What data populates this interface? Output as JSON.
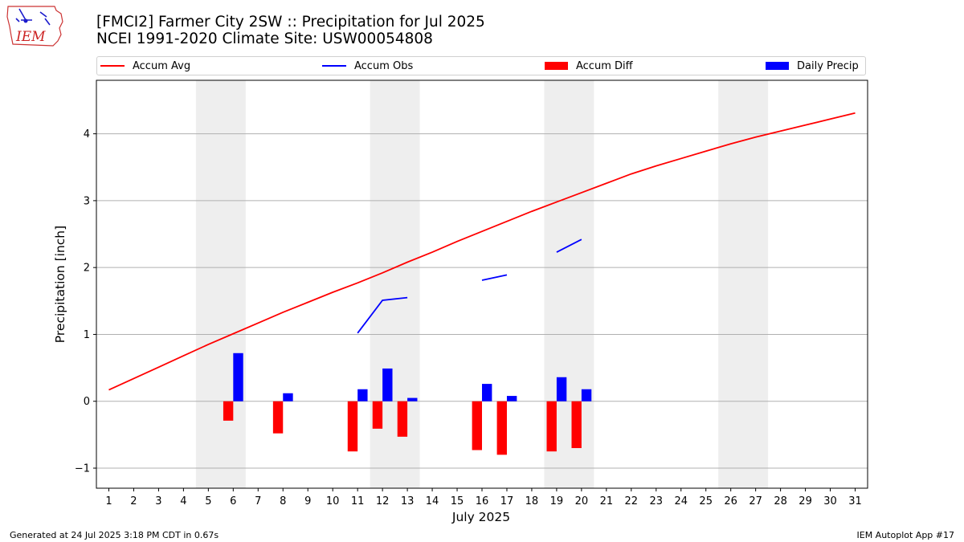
{
  "header": {
    "title_line1": "[FMCI2] Farmer City 2SW :: Precipitation for Jul 2025",
    "title_line2": "NCEI 1991-2020 Climate Site: USW00054808",
    "logo_text": "IEM"
  },
  "legend": {
    "position": "top",
    "items": [
      {
        "label": "Accum Avg",
        "kind": "line",
        "color": "#ff0000"
      },
      {
        "label": "Accum Obs",
        "kind": "line",
        "color": "#0000ff"
      },
      {
        "label": "Accum Diff",
        "kind": "bar",
        "color": "#ff0000"
      },
      {
        "label": "Daily Precip",
        "kind": "bar",
        "color": "#0000ff"
      }
    ]
  },
  "footer": {
    "left": "Generated at 24 Jul 2025 3:18 PM CDT in 0.67s",
    "right": "IEM Autoplot App #17"
  },
  "chart_data": {
    "type": "bar",
    "xlabel": "July 2025",
    "ylabel": "Precipitation [inch]",
    "xlim": [
      0.5,
      31.5
    ],
    "ylim": [
      -1.3,
      4.8
    ],
    "x_ticks": [
      1,
      2,
      3,
      4,
      5,
      6,
      7,
      8,
      9,
      10,
      11,
      12,
      13,
      14,
      15,
      16,
      17,
      18,
      19,
      20,
      21,
      22,
      23,
      24,
      25,
      26,
      27,
      28,
      29,
      30,
      31
    ],
    "y_ticks": [
      -1,
      0,
      1,
      2,
      3,
      4
    ],
    "y_tick_labels": [
      "−1",
      "0",
      "1",
      "2",
      "3",
      "4"
    ],
    "grid": "horizontal",
    "weekend_shading": [
      [
        4.5,
        6.5
      ],
      [
        11.5,
        13.5
      ],
      [
        18.5,
        20.5
      ],
      [
        25.5,
        27.5
      ]
    ],
    "shading_color": "#eeeeee",
    "series": [
      {
        "name": "Accum Avg",
        "kind": "line",
        "color": "#ff0000",
        "x": [
          1,
          2,
          3,
          4,
          5,
          6,
          7,
          8,
          9,
          10,
          11,
          12,
          13,
          14,
          15,
          16,
          17,
          18,
          19,
          20,
          21,
          22,
          23,
          24,
          25,
          26,
          27,
          28,
          29,
          30,
          31
        ],
        "values": [
          0.17,
          0.34,
          0.51,
          0.68,
          0.85,
          1.01,
          1.17,
          1.33,
          1.48,
          1.63,
          1.77,
          1.92,
          2.08,
          2.23,
          2.39,
          2.54,
          2.69,
          2.84,
          2.98,
          3.12,
          3.26,
          3.4,
          3.52,
          3.63,
          3.74,
          3.85,
          3.95,
          4.04,
          4.13,
          4.22,
          4.31
        ]
      },
      {
        "name": "Accum Obs",
        "kind": "line",
        "color": "#0000ff",
        "segments": [
          {
            "x": [
              11,
              12,
              13
            ],
            "values": [
              1.02,
              1.51,
              1.55
            ]
          },
          {
            "x": [
              16,
              17
            ],
            "values": [
              1.81,
              1.89
            ]
          },
          {
            "x": [
              19,
              20
            ],
            "values": [
              2.23,
              2.42
            ]
          }
        ]
      },
      {
        "name": "Accum Diff",
        "kind": "bar",
        "color": "#ff0000",
        "x": [
          6,
          8,
          11,
          12,
          13,
          16,
          17,
          19,
          20
        ],
        "values": [
          -0.29,
          -0.48,
          -0.75,
          -0.41,
          -0.53,
          -0.73,
          -0.8,
          -0.75,
          -0.7
        ]
      },
      {
        "name": "Daily Precip",
        "kind": "bar",
        "color": "#0000ff",
        "x": [
          6,
          8,
          11,
          12,
          13,
          16,
          17,
          19,
          20
        ],
        "values": [
          0.72,
          0.12,
          0.18,
          0.49,
          0.05,
          0.26,
          0.08,
          0.36,
          0.18
        ]
      }
    ]
  }
}
